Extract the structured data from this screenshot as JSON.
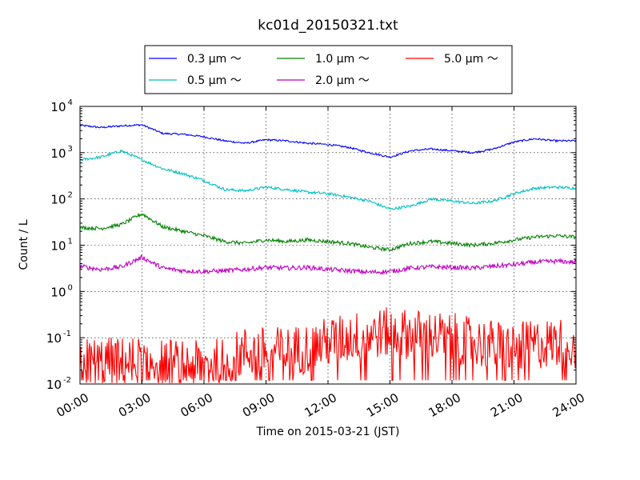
{
  "chart_data": {
    "type": "line",
    "title": "kc01d_20150321.txt",
    "xlabel": "Time on 2015-03-21 (JST)",
    "ylabel": "Count / L",
    "yscale": "log",
    "ylim": [
      0.01,
      10000
    ],
    "xlim_hours": [
      0,
      24
    ],
    "grid": true,
    "legend_position": "top-center",
    "x_tick_labels": [
      "00:00",
      "03:00",
      "06:00",
      "09:00",
      "12:00",
      "15:00",
      "18:00",
      "21:00",
      "24:00"
    ],
    "y_tick_labels": [
      {
        "base": "10",
        "exp": "-2"
      },
      {
        "base": "10",
        "exp": "-1"
      },
      {
        "base": "10",
        "exp": "0"
      },
      {
        "base": "10",
        "exp": "1"
      },
      {
        "base": "10",
        "exp": "2"
      },
      {
        "base": "10",
        "exp": "3"
      },
      {
        "base": "10",
        "exp": "4"
      }
    ],
    "x": [
      "00:00",
      "01:00",
      "02:00",
      "03:00",
      "04:00",
      "05:00",
      "06:00",
      "07:00",
      "08:00",
      "09:00",
      "10:00",
      "11:00",
      "12:00",
      "13:00",
      "14:00",
      "15:00",
      "16:00",
      "17:00",
      "18:00",
      "19:00",
      "20:00",
      "21:00",
      "22:00",
      "23:00",
      "24:00"
    ],
    "series": [
      {
        "name": "0.3 μm ～",
        "color": "#0000ff",
        "noise": 0.02,
        "values": [
          3900,
          3500,
          3800,
          4000,
          2600,
          2500,
          2200,
          1800,
          1600,
          1900,
          1800,
          1600,
          1500,
          1300,
          1000,
          800,
          1100,
          1200,
          1100,
          1000,
          1200,
          1700,
          2000,
          1800,
          1800
        ]
      },
      {
        "name": "0.5 μm ～",
        "color": "#00bfbf",
        "noise": 0.03,
        "values": [
          700,
          800,
          1100,
          700,
          450,
          350,
          250,
          160,
          150,
          180,
          160,
          140,
          130,
          110,
          90,
          60,
          70,
          100,
          90,
          80,
          90,
          130,
          170,
          180,
          170
        ]
      },
      {
        "name": "1.0 μm ～",
        "color": "#008000",
        "noise": 0.04,
        "values": [
          24,
          23,
          28,
          48,
          25,
          20,
          16,
          12,
          11,
          13,
          12,
          13,
          12,
          11,
          9,
          8,
          11,
          12,
          11,
          10,
          11,
          13,
          15,
          16,
          15
        ]
      },
      {
        "name": "2.0 μm ～",
        "color": "#bf00bf",
        "noise": 0.05,
        "values": [
          3.5,
          3.0,
          3.4,
          5.5,
          3.2,
          2.8,
          2.7,
          2.8,
          3.0,
          3.3,
          3.2,
          3.3,
          3.0,
          2.8,
          2.6,
          2.7,
          3.2,
          3.4,
          3.3,
          3.2,
          3.5,
          3.8,
          4.3,
          4.5,
          4.3
        ]
      },
      {
        "name": "5.0 μm ～",
        "color": "#ff0000",
        "noise": 0.55,
        "floor": 0.012,
        "values": [
          0.03,
          0.03,
          0.03,
          0.03,
          0.03,
          0.025,
          0.025,
          0.03,
          0.05,
          0.05,
          0.05,
          0.06,
          0.08,
          0.1,
          0.12,
          0.13,
          0.12,
          0.11,
          0.1,
          0.08,
          0.07,
          0.06,
          0.07,
          0.08,
          0.07
        ]
      }
    ]
  }
}
